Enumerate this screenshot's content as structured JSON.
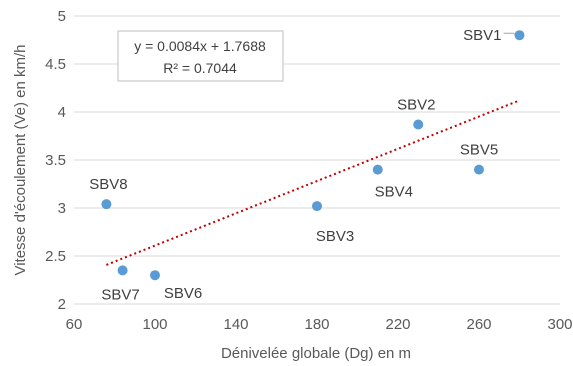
{
  "chart_data": {
    "type": "scatter",
    "xlabel": "Dénivelée globale (Dg) en m",
    "ylabel": "Vitesse d'écoulement (Ve) en km/h",
    "xlim": [
      60,
      300
    ],
    "ylim": [
      2,
      5
    ],
    "xticks": [
      60,
      100,
      140,
      180,
      220,
      260,
      300
    ],
    "yticks": [
      2,
      2.5,
      3,
      3.5,
      4,
      4.5,
      5
    ],
    "ytick_labels": [
      "2",
      "2.5",
      "3",
      "3.5",
      "4",
      "4.5",
      "5"
    ],
    "grid": "horizontal",
    "point_color": "#5B9BD5",
    "trendline_color": "#C00000",
    "points": [
      {
        "label": "SBV1",
        "x": 280,
        "y": 4.8
      },
      {
        "label": "SBV2",
        "x": 230,
        "y": 3.87
      },
      {
        "label": "SBV3",
        "x": 180,
        "y": 3.02
      },
      {
        "label": "SBV4",
        "x": 210,
        "y": 3.4
      },
      {
        "label": "SBV5",
        "x": 260,
        "y": 3.4
      },
      {
        "label": "SBV6",
        "x": 100,
        "y": 2.3
      },
      {
        "label": "SBV7",
        "x": 84,
        "y": 2.35
      },
      {
        "label": "SBV8",
        "x": 76,
        "y": 3.04
      }
    ],
    "trendline": {
      "slope": 0.0084,
      "intercept": 1.7688,
      "x_range": [
        76,
        280
      ],
      "equation": "y = 0.0084x + 1.7688",
      "r2": "R² = 0.7044"
    }
  }
}
